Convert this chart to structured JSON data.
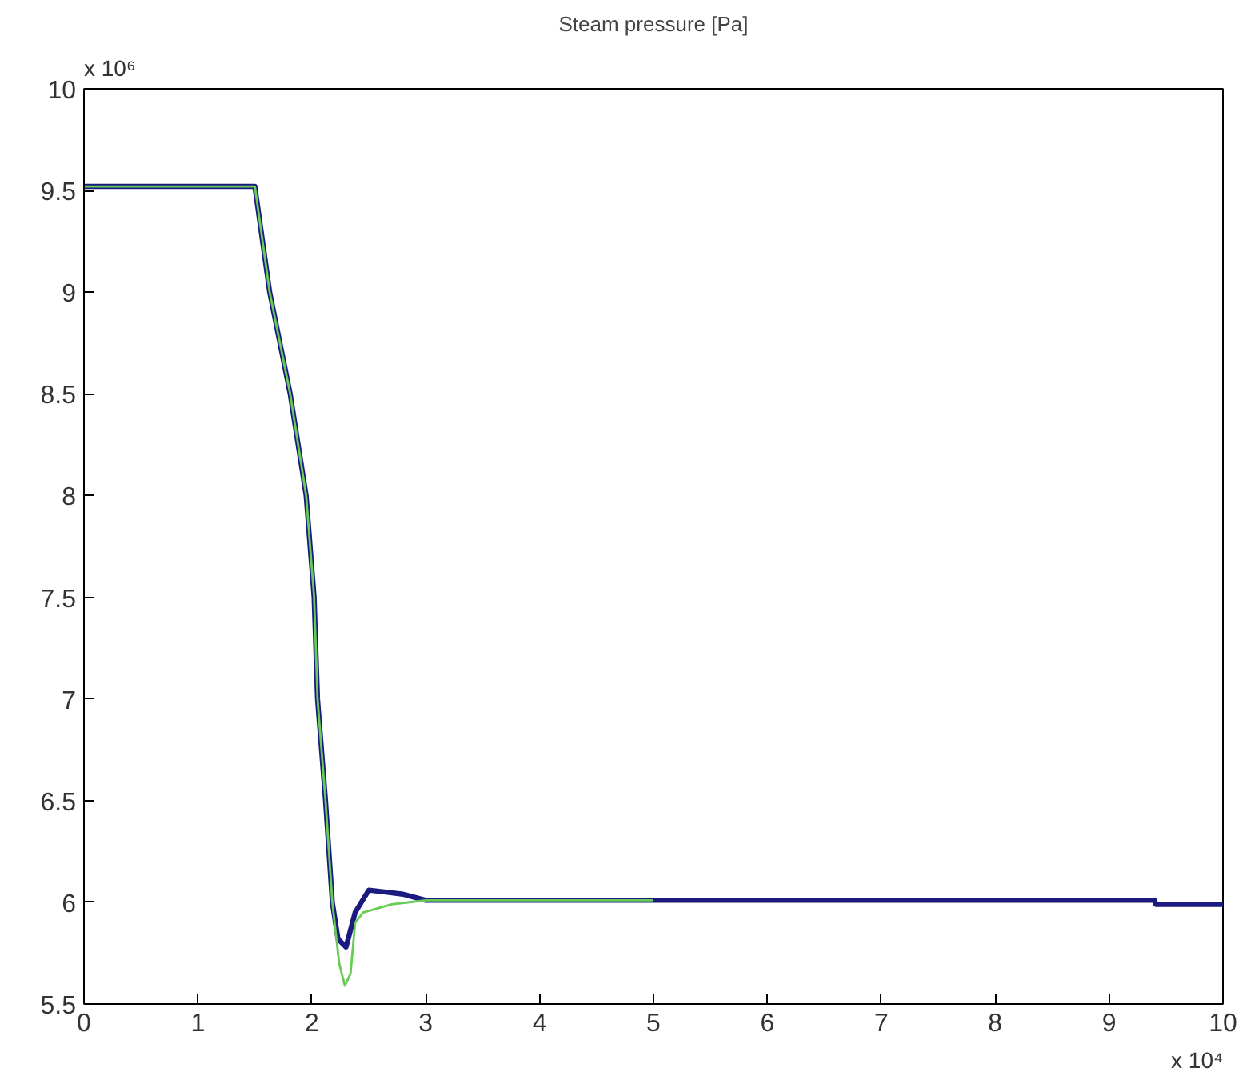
{
  "chart_data": {
    "type": "line",
    "title": "Steam pressure [Pa]",
    "annotations": [
      "x 10⁶",
      "x 10⁴"
    ],
    "xlim": [
      0,
      10
    ],
    "xticks": [
      0,
      1,
      2,
      3,
      4,
      5,
      6,
      7,
      8,
      9,
      10
    ],
    "ylim": [
      5.5,
      10
    ],
    "yticks": [
      5.5,
      6,
      6.5,
      7,
      7.5,
      8,
      8.5,
      9,
      9.5,
      10
    ],
    "grid": false,
    "series": [
      {
        "color": "#1a1a80",
        "x": [
          0,
          1.5,
          1.63,
          1.81,
          1.95,
          2.02,
          2.05,
          2.12,
          2.18,
          2.23,
          2.3,
          2.38,
          2.5,
          2.65,
          2.8,
          3.0,
          9.4,
          9.41,
          10
        ],
        "values": [
          9.52,
          9.52,
          9.0,
          8.5,
          8.0,
          7.5,
          7.0,
          6.5,
          6.0,
          5.82,
          5.78,
          5.95,
          6.06,
          6.05,
          6.04,
          6.01,
          6.01,
          5.99,
          5.99
        ]
      },
      {
        "color": "#66cc55",
        "x": [
          0,
          1.5,
          1.63,
          1.81,
          1.95,
          2.02,
          2.05,
          2.12,
          2.18,
          2.24,
          2.29,
          2.34,
          2.38,
          2.45,
          2.7,
          3.0,
          5.0
        ],
        "values": [
          9.52,
          9.52,
          9.0,
          8.5,
          8.0,
          7.5,
          7.0,
          6.5,
          6.0,
          5.7,
          5.59,
          5.65,
          5.9,
          5.95,
          5.99,
          6.01,
          6.01
        ]
      }
    ]
  }
}
